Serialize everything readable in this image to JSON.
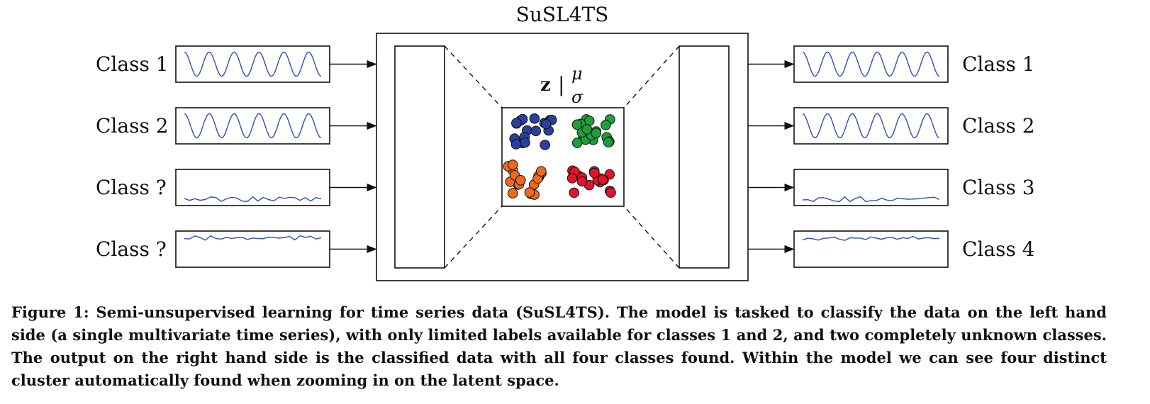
{
  "title": "SuSL4TS",
  "latent_label": {
    "z": "z",
    "separator": "|",
    "mu": "μ",
    "sigma": "σ"
  },
  "inputs": [
    {
      "label": "Class 1",
      "signal": "sine"
    },
    {
      "label": "Class 2",
      "signal": "sine"
    },
    {
      "label": "Class ?",
      "signal": "noise"
    },
    {
      "label": "Class ?",
      "signal": "noise"
    }
  ],
  "outputs": [
    {
      "label": "Class 1",
      "signal": "sine"
    },
    {
      "label": "Class 2",
      "signal": "sine"
    },
    {
      "label": "Class 3",
      "signal": "noise"
    },
    {
      "label": "Class 4",
      "signal": "noise"
    }
  ],
  "clusters": [
    {
      "name": "blue",
      "color": "#2a3f9e"
    },
    {
      "name": "green",
      "color": "#1f9e3c"
    },
    {
      "name": "orange",
      "color": "#ec6a1c"
    },
    {
      "name": "red",
      "color": "#e0142a"
    }
  ],
  "colors": {
    "line": "#111111",
    "signal": "#2d4fb5"
  },
  "caption": "Figure 1: Semi-unsupervised learning for time series data (SuSL4TS). The model is tasked to classify the data on the left hand side (a single multivariate time series), with only limited labels available for classes 1 and 2, and two completely unknown classes. The output on the right hand side is the classified data with all four classes found. Within the model we can see four distinct cluster automatically found when zooming in on the latent space."
}
